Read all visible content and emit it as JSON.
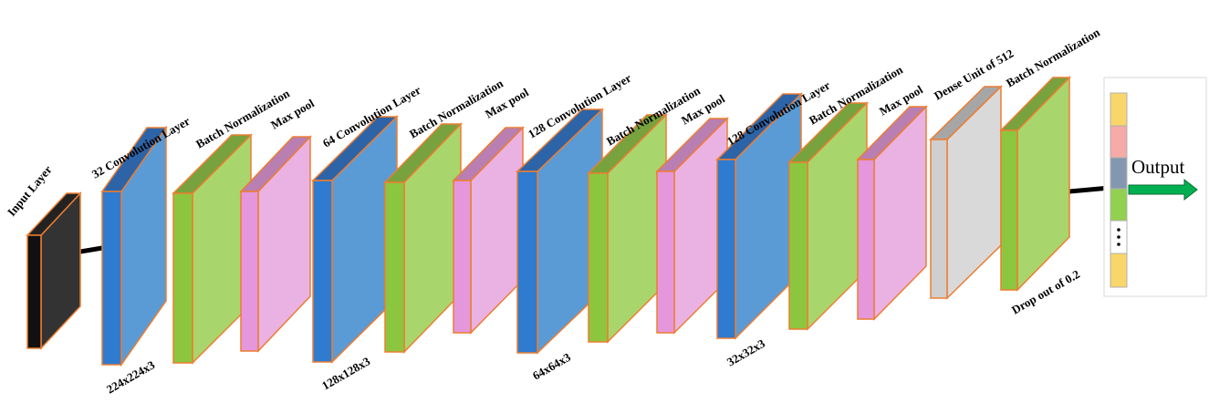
{
  "layers": [
    {
      "label": "Input Layer"
    },
    {
      "label": "32 Convolution Layer",
      "size": "224x224x3"
    },
    {
      "label": "Batch Normalization"
    },
    {
      "label": "Max pool"
    },
    {
      "label": "64 Convolution Layer",
      "size": "128x128x3"
    },
    {
      "label": "Batch Normalization"
    },
    {
      "label": "Max pool"
    },
    {
      "label": "128 Convolution Layer",
      "size": "64x64x3"
    },
    {
      "label": "Batch Normalization"
    },
    {
      "label": "Max pool"
    },
    {
      "label": "128 Convolution Layer",
      "size": "32x32x3"
    },
    {
      "label": "Batch Normalization"
    },
    {
      "label": "Max pool"
    },
    {
      "label": "Dense Unit of 512"
    },
    {
      "label": "Batch Normalization",
      "size": "Drop out of 0.2"
    }
  ],
  "output": {
    "label": "Output"
  }
}
